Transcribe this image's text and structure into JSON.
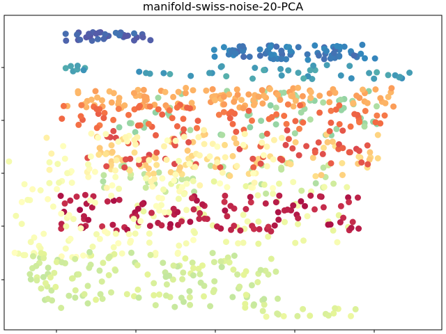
{
  "chart_data": {
    "type": "scatter",
    "title": "manifold-swiss-noise-20-PCA",
    "xlabel": "",
    "ylabel": "",
    "x_ticks": 5,
    "y_ticks": 5,
    "tick_labels_visible": false,
    "grid": false,
    "legend": "none",
    "colormap": "Spectral",
    "point_color": "by color value c (0 = deep red, 1 = violet)",
    "point_count_estimate": 1000,
    "xlim": [
      -1.07,
      1.48
    ],
    "ylim": [
      -1.02,
      1.45
    ],
    "clusters": [
      {
        "c": 0.96,
        "x": [
          -0.72,
          -0.2
        ],
        "y": [
          1.25,
          1.32
        ],
        "n": 35
      },
      {
        "c": 0.92,
        "x": [
          0.15,
          1.1
        ],
        "y": [
          1.1,
          1.22
        ],
        "n": 75
      },
      {
        "c": 0.86,
        "x": [
          -0.72,
          1.3
        ],
        "y": [
          0.95,
          1.06
        ],
        "n": 45
      },
      {
        "c": 0.72,
        "x": [
          -0.55,
          1.12
        ],
        "y": [
          0.5,
          0.86
        ],
        "n": 60
      },
      {
        "c": 0.66,
        "x": [
          -0.52,
          0.95
        ],
        "y": [
          0.05,
          0.3
        ],
        "n": 40
      },
      {
        "c": 0.56,
        "x": [
          -0.3,
          0.95
        ],
        "y": [
          -0.35,
          0.15
        ],
        "n": 50
      },
      {
        "c": 0.38,
        "x": [
          -0.55,
          1.12
        ],
        "y": [
          0.18,
          0.52
        ],
        "n": 80
      },
      {
        "c": 0.3,
        "x": [
          -0.72,
          1.2
        ],
        "y": [
          0.72,
          0.88
        ],
        "n": 120
      },
      {
        "c": 0.2,
        "x": [
          -0.75,
          1.15
        ],
        "y": [
          0.55,
          0.75
        ],
        "n": 75
      },
      {
        "c": 0.15,
        "x": [
          -0.6,
          1.1
        ],
        "y": [
          0.25,
          0.55
        ],
        "n": 60
      },
      {
        "c": 0.05,
        "x": [
          -0.75,
          1.0
        ],
        "y": [
          -0.25,
          0.05
        ],
        "n": 110
      },
      {
        "c": 0.48,
        "x": [
          -0.85,
          0.55
        ],
        "y": [
          0.05,
          0.55
        ],
        "n": 70
      },
      {
        "c": 0.52,
        "x": [
          -1.05,
          0.05
        ],
        "y": [
          -0.45,
          0.35
        ],
        "n": 90
      },
      {
        "c": 0.63,
        "x": [
          -0.95,
          0.55
        ],
        "y": [
          -0.85,
          -0.4
        ],
        "n": 140
      },
      {
        "c": 0.6,
        "x": [
          0.4,
          1.0
        ],
        "y": [
          -0.92,
          -0.85
        ],
        "n": 15
      }
    ]
  }
}
